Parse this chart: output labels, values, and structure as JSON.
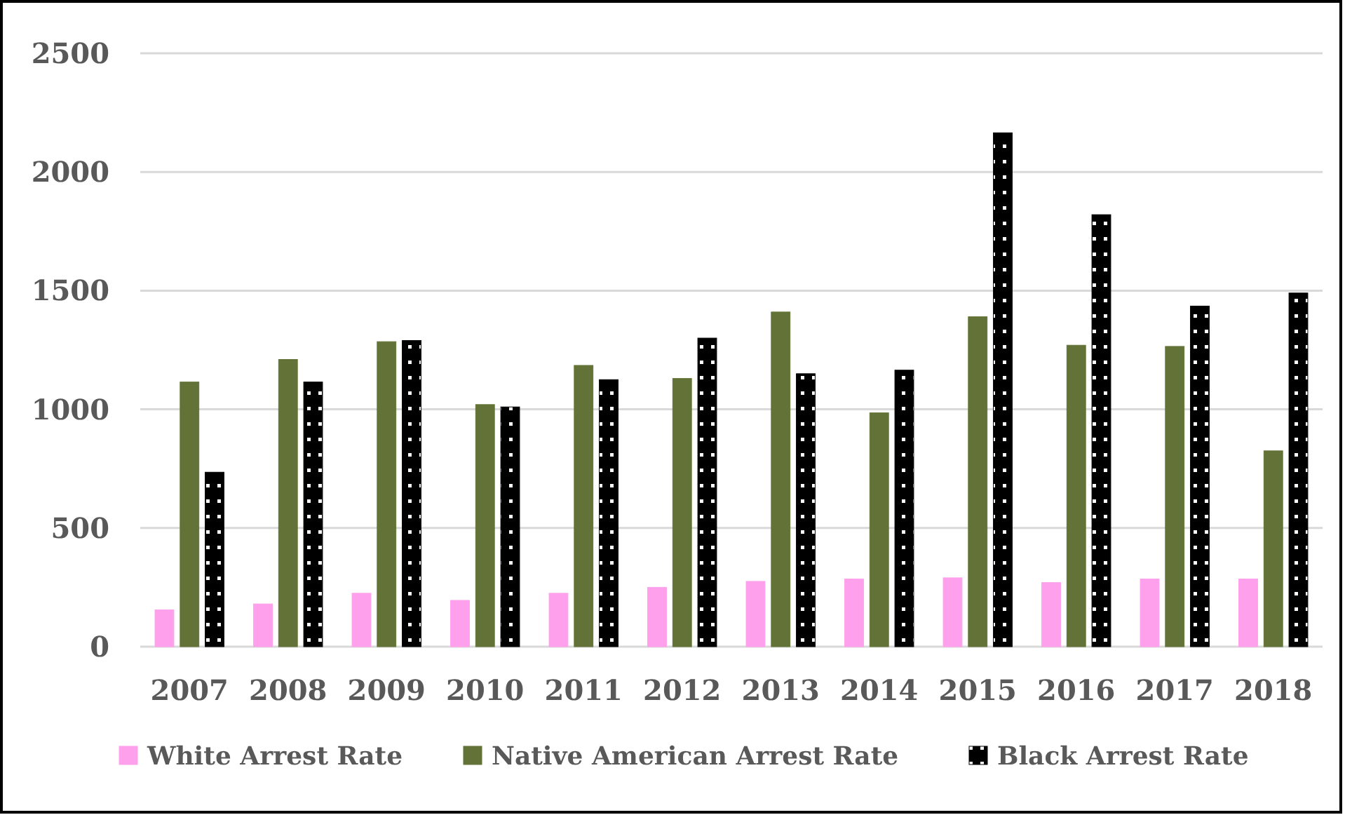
{
  "chart_data": {
    "type": "bar",
    "categories": [
      "2007",
      "2008",
      "2009",
      "2010",
      "2011",
      "2012",
      "2013",
      "2014",
      "2015",
      "2016",
      "2017",
      "2018"
    ],
    "series": [
      {
        "name": "White Arrest Rate",
        "color": "#ffa0ec",
        "values": [
          155,
          180,
          225,
          195,
          225,
          250,
          275,
          285,
          290,
          270,
          285,
          285
        ]
      },
      {
        "name": "Native American Arrest Rate",
        "color": "#637337",
        "values": [
          1115,
          1210,
          1285,
          1020,
          1185,
          1130,
          1410,
          985,
          1390,
          1270,
          1265,
          825
        ]
      },
      {
        "name": "Black Arrest Rate",
        "color": "#000000",
        "values": [
          735,
          1115,
          1290,
          1010,
          1125,
          1300,
          1150,
          1165,
          2165,
          1820,
          1435,
          1490
        ]
      }
    ],
    "ylim": [
      0,
      2500
    ],
    "yticks": [
      0,
      500,
      1000,
      1500,
      2000,
      2500
    ],
    "grid": "y",
    "legend": "bottom"
  }
}
